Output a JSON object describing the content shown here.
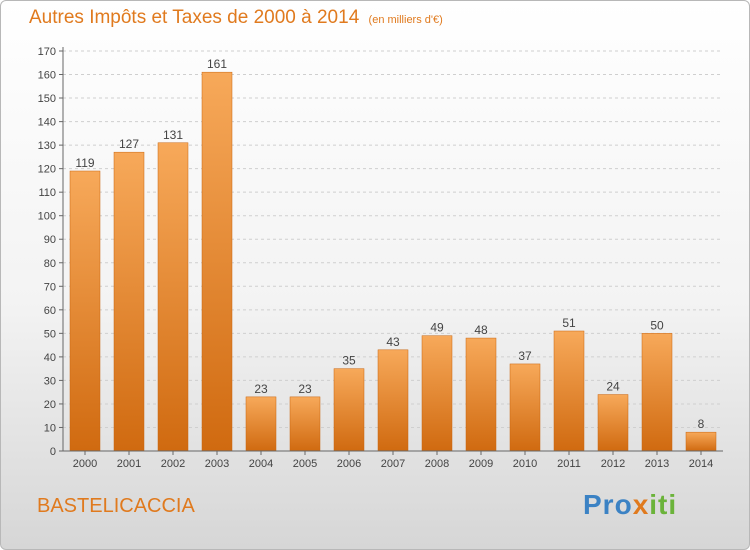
{
  "header": {
    "title": "Autres Impôts et Taxes de 2000 à 2014",
    "unit": "(en milliers d'€)"
  },
  "footer": {
    "place": "BASTELICACCIA",
    "logo": "Proxiti"
  },
  "colors": {
    "accent": "#e07a1e",
    "bar_light": "#f7a95a",
    "bar_dark": "#d06a10"
  },
  "chart_data": {
    "type": "bar",
    "title": "Autres Impôts et Taxes de 2000 à 2014",
    "ylabel": "(en milliers d'€)",
    "xlabel": "",
    "categories": [
      "2000",
      "2001",
      "2002",
      "2003",
      "2004",
      "2005",
      "2006",
      "2007",
      "2008",
      "2009",
      "2010",
      "2011",
      "2012",
      "2013",
      "2014"
    ],
    "values": [
      119,
      127,
      131,
      161,
      23,
      23,
      35,
      43,
      49,
      48,
      37,
      51,
      24,
      50,
      8
    ],
    "ylim": [
      0,
      170
    ],
    "yticks": [
      0,
      10,
      20,
      30,
      40,
      50,
      60,
      70,
      80,
      90,
      100,
      110,
      120,
      130,
      140,
      150,
      160,
      170
    ],
    "grid": "horizontal dashed"
  }
}
